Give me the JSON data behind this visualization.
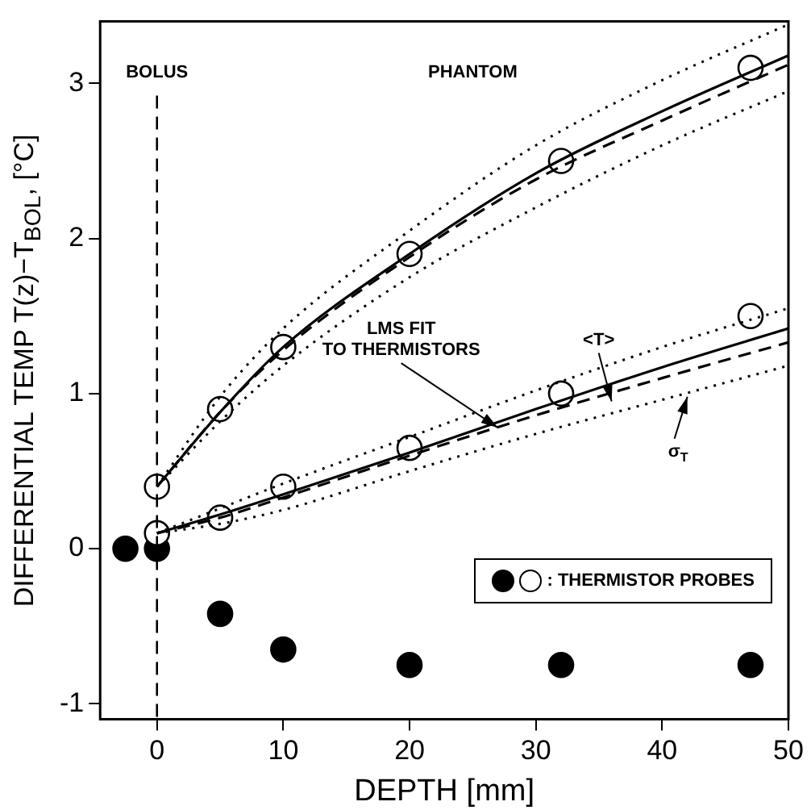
{
  "chart_data": {
    "type": "line",
    "xlabel": "DEPTH [mm]",
    "ylabel": "DIFFERENTIAL TEMP  T(z)−T$_{BOL}$, [°C]",
    "xlim": [
      -4.5,
      50
    ],
    "ylim": [
      -1.1,
      3.4
    ],
    "xticks": [
      0,
      10,
      20,
      30,
      40,
      50
    ],
    "yticks": [
      -1,
      0,
      1,
      2,
      3
    ],
    "grid": false,
    "legend": "bottom right",
    "ref_lines": [
      {
        "axis": "x",
        "value": 0,
        "label": "BOLUS",
        "line_style": "dashed",
        "color": "#000000"
      }
    ],
    "annotations": [
      "PHANTOM",
      {
        "text": "LMS FIT TO THERMISTORS",
        "x": 27,
        "y": 0.78
      },
      {
        "text": "<T>",
        "x": 36,
        "y": 0.95
      },
      {
        "text": "σ$_{T}$",
        "x": 42,
        "y": 0.98
      }
    ],
    "series": [
      {
        "type": "line",
        "color": "#000000",
        "line_style": "solid",
        "marker": "none",
        "x": [
          0,
          5,
          10,
          20,
          30,
          40,
          50
        ],
        "values": [
          0.4,
          0.88,
          1.3,
          1.9,
          2.42,
          2.82,
          3.18
        ]
      },
      {
        "type": "line",
        "color": "#000000",
        "line_style": "dashed",
        "marker": "none",
        "x": [
          0,
          5,
          10,
          20,
          30,
          40,
          50
        ],
        "values": [
          0.4,
          0.88,
          1.28,
          1.88,
          2.38,
          2.76,
          3.12
        ]
      },
      {
        "type": "line",
        "color": "#000000",
        "line_style": "dotted",
        "marker": "none",
        "x": [
          0,
          5,
          10,
          20,
          30,
          40,
          50
        ],
        "values": [
          0.4,
          0.98,
          1.42,
          2.05,
          2.6,
          3.02,
          3.38
        ]
      },
      {
        "type": "line",
        "color": "#000000",
        "line_style": "dotted",
        "marker": "none",
        "x": [
          0,
          5,
          10,
          20,
          30,
          40,
          50
        ],
        "values": [
          0.4,
          0.82,
          1.18,
          1.75,
          2.2,
          2.6,
          2.95
        ]
      },
      {
        "type": "line",
        "color": "#000000",
        "line_style": "solid",
        "marker": "none",
        "x": [
          0,
          5,
          10,
          20,
          30,
          40,
          50
        ],
        "values": [
          0.1,
          0.22,
          0.35,
          0.62,
          0.9,
          1.17,
          1.42
        ]
      },
      {
        "type": "line",
        "color": "#000000",
        "line_style": "dashed",
        "marker": "none",
        "x": [
          0,
          5,
          10,
          20,
          30,
          40,
          50
        ],
        "values": [
          0.1,
          0.2,
          0.33,
          0.6,
          0.86,
          1.1,
          1.33
        ]
      },
      {
        "type": "line",
        "color": "#000000",
        "line_style": "dotted",
        "marker": "none",
        "x": [
          0,
          5,
          10,
          20,
          30,
          40,
          50
        ],
        "values": [
          0.1,
          0.26,
          0.42,
          0.72,
          1.02,
          1.3,
          1.55
        ]
      },
      {
        "type": "line",
        "color": "#000000",
        "line_style": "dotted",
        "marker": "none",
        "x": [
          0,
          5,
          10,
          20,
          30,
          40,
          50
        ],
        "values": [
          0.1,
          0.16,
          0.25,
          0.5,
          0.74,
          0.96,
          1.18
        ]
      },
      {
        "type": "scatter",
        "name": ": THERMISTOR PROBES",
        "color": "#ffffff",
        "marker": "circle",
        "x": [
          0,
          5,
          10,
          20,
          32,
          47
        ],
        "values": [
          0.4,
          0.9,
          1.3,
          1.9,
          2.5,
          3.1
        ]
      },
      {
        "type": "scatter",
        "color": "#ffffff",
        "marker": "circle",
        "x": [
          0,
          5,
          10,
          20,
          32,
          47
        ],
        "values": [
          0.1,
          0.2,
          0.4,
          0.65,
          1.0,
          1.5
        ]
      },
      {
        "type": "scatter",
        "color": "#000000",
        "marker": "circle",
        "x": [
          -2.5,
          0,
          5,
          10,
          20,
          32,
          47
        ],
        "values": [
          0,
          0,
          -0.42,
          -0.65,
          -0.75,
          -0.75,
          -0.75
        ]
      }
    ]
  }
}
